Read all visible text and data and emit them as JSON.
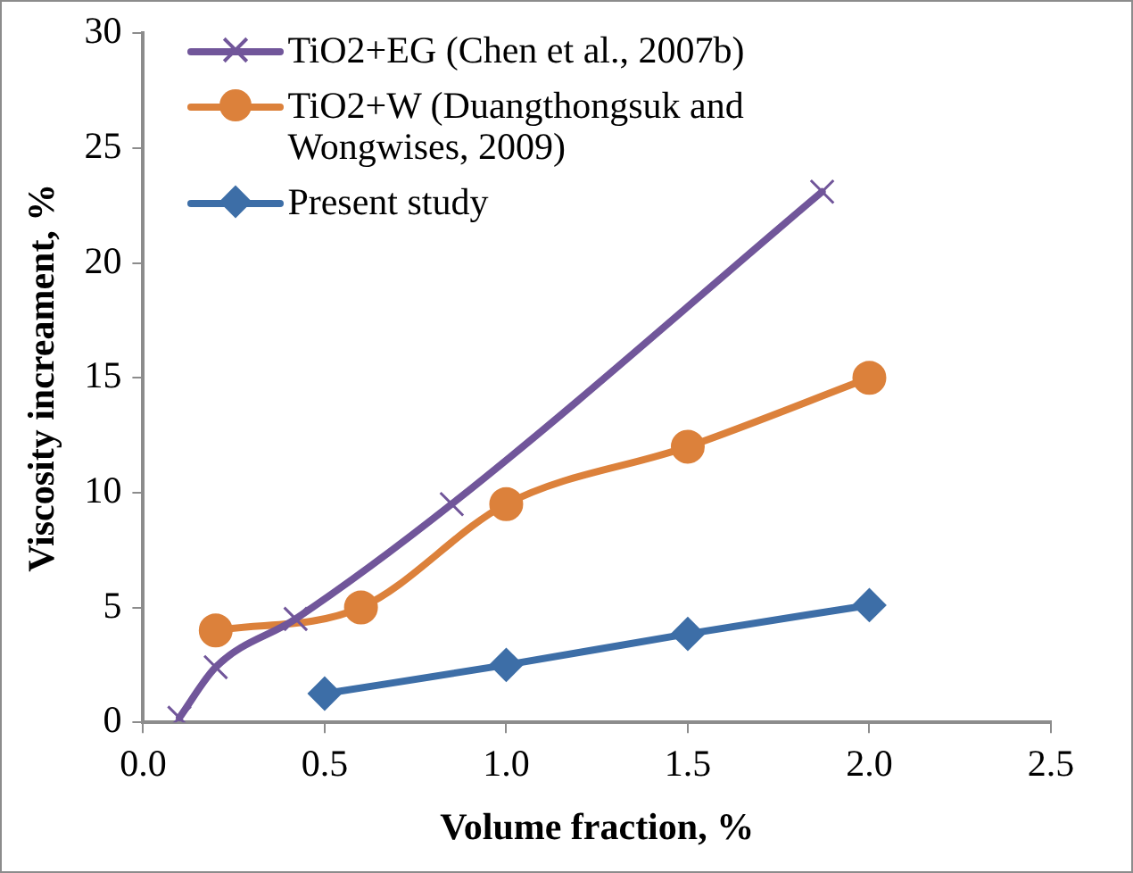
{
  "chart_data": {
    "type": "line",
    "xlabel": "Volume fraction, %",
    "ylabel": "Viscosity increament, %",
    "xlim": [
      0,
      2.5
    ],
    "xticks": [
      {
        "value": 0,
        "label": "0.0"
      },
      {
        "value": 0.5,
        "label": "0.5"
      },
      {
        "value": 1,
        "label": "1.0"
      },
      {
        "value": 1.5,
        "label": "1.5"
      },
      {
        "value": 2,
        "label": "2.0"
      },
      {
        "value": 2.5,
        "label": "2.5"
      }
    ],
    "ylim": [
      0,
      30
    ],
    "yticks": [
      0,
      5,
      10,
      15,
      20,
      25,
      30
    ],
    "grid": false,
    "legend": "top left",
    "line_style": "solid",
    "series": [
      {
        "name": "TiO2+EG (Chen et al., 2007b)",
        "color": "#71569a",
        "marker": "cross",
        "x": [
          0.1,
          0.2,
          0.42,
          0.85,
          1.87
        ],
        "values": [
          0.2,
          2.4,
          4.5,
          9.5,
          23.1
        ]
      },
      {
        "name": "TiO2+W (Duangthongsuk and Wongwises, 2009)",
        "color": "#dc813b",
        "marker": "circle",
        "x": [
          0.2,
          0.6,
          1.0,
          1.5,
          2.0
        ],
        "values": [
          4.0,
          5.0,
          9.5,
          12.0,
          15.0
        ]
      },
      {
        "name": "Present study",
        "color": "#3d6ea7",
        "marker": "diamond",
        "x": [
          0.5,
          1.0,
          1.5,
          2.0
        ],
        "values": [
          1.25,
          2.5,
          3.85,
          5.1
        ]
      }
    ]
  }
}
